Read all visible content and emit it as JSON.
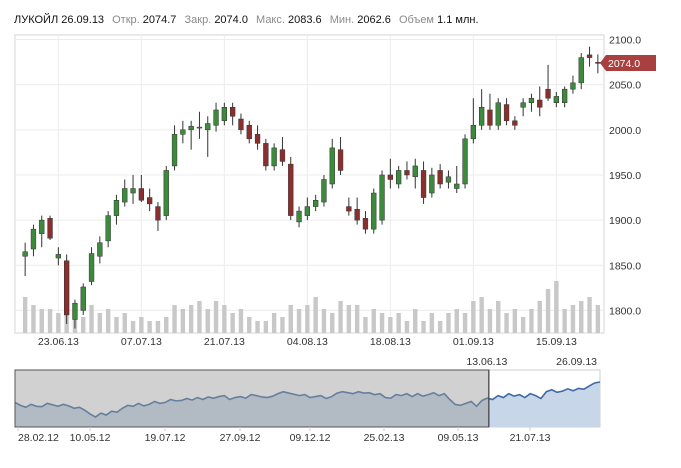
{
  "header": {
    "ticker": "ЛУКОЙЛ",
    "date": "26.09.13",
    "open_label": "Откр.",
    "open": "2074.7",
    "close_label": "Закр.",
    "close": "2074.0",
    "high_label": "Макс.",
    "high": "2083.6",
    "low_label": "Мин.",
    "low": "2062.6",
    "volume_label": "Объем",
    "volume": "1.1 млн."
  },
  "last_price_label": "2074.0",
  "colors": {
    "up": "#3c8a3c",
    "down": "#8b2e2e",
    "volume": "#c8c8c8",
    "price_tag": "#a94040",
    "navigator_line": "#3f6aa3",
    "navigator_fill": "#c7d6e8",
    "selection_shade": "#9a9a9a"
  },
  "chart_data": [
    {
      "type": "candlestick",
      "ylim": [
        1775,
        2105
      ],
      "y_ticks": [
        "2100.0",
        "2050.0",
        "2000.0",
        "1950.0",
        "1900.0",
        "1850.0",
        "1800.0"
      ],
      "x_tick_labels": [
        "23.06.13",
        "07.07.13",
        "21.07.13",
        "04.08.13",
        "18.08.13",
        "01.09.13",
        "15.09.13"
      ],
      "x_tick_positions": [
        4,
        14,
        24,
        34,
        44,
        54,
        64
      ],
      "candles": [
        {
          "o": 1860,
          "h": 1875,
          "l": 1838,
          "c": 1865
        },
        {
          "o": 1868,
          "h": 1895,
          "l": 1860,
          "c": 1890
        },
        {
          "o": 1885,
          "h": 1905,
          "l": 1870,
          "c": 1900
        },
        {
          "o": 1902,
          "h": 1905,
          "l": 1878,
          "c": 1880
        },
        {
          "o": 1858,
          "h": 1870,
          "l": 1850,
          "c": 1862
        },
        {
          "o": 1855,
          "h": 1862,
          "l": 1785,
          "c": 1795
        },
        {
          "o": 1790,
          "h": 1812,
          "l": 1780,
          "c": 1808
        },
        {
          "o": 1800,
          "h": 1830,
          "l": 1795,
          "c": 1826
        },
        {
          "o": 1832,
          "h": 1870,
          "l": 1828,
          "c": 1863
        },
        {
          "o": 1860,
          "h": 1882,
          "l": 1852,
          "c": 1875
        },
        {
          "o": 1877,
          "h": 1910,
          "l": 1870,
          "c": 1905
        },
        {
          "o": 1905,
          "h": 1928,
          "l": 1895,
          "c": 1922
        },
        {
          "o": 1920,
          "h": 1945,
          "l": 1915,
          "c": 1935
        },
        {
          "o": 1930,
          "h": 1950,
          "l": 1918,
          "c": 1935
        },
        {
          "o": 1935,
          "h": 1950,
          "l": 1920,
          "c": 1922
        },
        {
          "o": 1925,
          "h": 1935,
          "l": 1910,
          "c": 1918
        },
        {
          "o": 1915,
          "h": 1920,
          "l": 1888,
          "c": 1900
        },
        {
          "o": 1905,
          "h": 1960,
          "l": 1900,
          "c": 1955
        },
        {
          "o": 1960,
          "h": 2005,
          "l": 1955,
          "c": 1995
        },
        {
          "o": 1995,
          "h": 2010,
          "l": 1985,
          "c": 2000
        },
        {
          "o": 2000,
          "h": 2010,
          "l": 1978,
          "c": 2004
        },
        {
          "o": 2002,
          "h": 2020,
          "l": 1990,
          "c": 2003
        },
        {
          "o": 2000,
          "h": 2015,
          "l": 1970,
          "c": 2007
        },
        {
          "o": 2005,
          "h": 2030,
          "l": 1998,
          "c": 2022
        },
        {
          "o": 2010,
          "h": 2030,
          "l": 2005,
          "c": 2025
        },
        {
          "o": 2025,
          "h": 2030,
          "l": 2005,
          "c": 2015
        },
        {
          "o": 2012,
          "h": 2018,
          "l": 1995,
          "c": 2000
        },
        {
          "o": 2005,
          "h": 2010,
          "l": 1985,
          "c": 1990
        },
        {
          "o": 1995,
          "h": 2005,
          "l": 1978,
          "c": 1985
        },
        {
          "o": 1985,
          "h": 1990,
          "l": 1955,
          "c": 1960
        },
        {
          "o": 1960,
          "h": 1985,
          "l": 1955,
          "c": 1980
        },
        {
          "o": 1978,
          "h": 1992,
          "l": 1960,
          "c": 1965
        },
        {
          "o": 1962,
          "h": 1970,
          "l": 1900,
          "c": 1905
        },
        {
          "o": 1898,
          "h": 1915,
          "l": 1892,
          "c": 1910
        },
        {
          "o": 1905,
          "h": 1925,
          "l": 1900,
          "c": 1915
        },
        {
          "o": 1915,
          "h": 1928,
          "l": 1910,
          "c": 1922
        },
        {
          "o": 1920,
          "h": 1950,
          "l": 1915,
          "c": 1945
        },
        {
          "o": 1940,
          "h": 1990,
          "l": 1935,
          "c": 1980
        },
        {
          "o": 1978,
          "h": 1992,
          "l": 1950,
          "c": 1955
        },
        {
          "o": 1915,
          "h": 1925,
          "l": 1905,
          "c": 1910
        },
        {
          "o": 1912,
          "h": 1925,
          "l": 1895,
          "c": 1900
        },
        {
          "o": 1902,
          "h": 1910,
          "l": 1885,
          "c": 1890
        },
        {
          "o": 1890,
          "h": 1935,
          "l": 1885,
          "c": 1930
        },
        {
          "o": 1900,
          "h": 1955,
          "l": 1895,
          "c": 1950
        },
        {
          "o": 1950,
          "h": 1968,
          "l": 1935,
          "c": 1945
        },
        {
          "o": 1940,
          "h": 1960,
          "l": 1935,
          "c": 1955
        },
        {
          "o": 1955,
          "h": 1965,
          "l": 1945,
          "c": 1950
        },
        {
          "o": 1948,
          "h": 1968,
          "l": 1935,
          "c": 1960
        },
        {
          "o": 1955,
          "h": 1965,
          "l": 1918,
          "c": 1925
        },
        {
          "o": 1930,
          "h": 1958,
          "l": 1925,
          "c": 1950
        },
        {
          "o": 1955,
          "h": 1962,
          "l": 1935,
          "c": 1940
        },
        {
          "o": 1942,
          "h": 1955,
          "l": 1935,
          "c": 1948
        },
        {
          "o": 1935,
          "h": 1960,
          "l": 1930,
          "c": 1940
        },
        {
          "o": 1940,
          "h": 1995,
          "l": 1935,
          "c": 1990
        },
        {
          "o": 1990,
          "h": 2035,
          "l": 1985,
          "c": 2005
        },
        {
          "o": 2005,
          "h": 2045,
          "l": 2000,
          "c": 2025
        },
        {
          "o": 2022,
          "h": 2040,
          "l": 2000,
          "c": 2005
        },
        {
          "o": 2005,
          "h": 2035,
          "l": 2000,
          "c": 2030
        },
        {
          "o": 2028,
          "h": 2035,
          "l": 2005,
          "c": 2010
        },
        {
          "o": 2010,
          "h": 2015,
          "l": 2000,
          "c": 2005
        },
        {
          "o": 2025,
          "h": 2035,
          "l": 2015,
          "c": 2030
        },
        {
          "o": 2030,
          "h": 2040,
          "l": 2020,
          "c": 2035
        },
        {
          "o": 2033,
          "h": 2048,
          "l": 2015,
          "c": 2025
        },
        {
          "o": 2045,
          "h": 2072,
          "l": 2032,
          "c": 2035
        },
        {
          "o": 2030,
          "h": 2042,
          "l": 2025,
          "c": 2037
        },
        {
          "o": 2030,
          "h": 2048,
          "l": 2025,
          "c": 2045
        },
        {
          "o": 2045,
          "h": 2060,
          "l": 2040,
          "c": 2052
        },
        {
          "o": 2052,
          "h": 2085,
          "l": 2045,
          "c": 2080
        },
        {
          "o": 2083,
          "h": 2092,
          "l": 2070,
          "c": 2080
        },
        {
          "o": 2074.7,
          "h": 2083.6,
          "l": 2062.6,
          "c": 2074.0
        }
      ],
      "volume": [
        0.9,
        0.7,
        0.6,
        0.6,
        0.5,
        0.8,
        0.6,
        0.4,
        0.7,
        0.5,
        0.6,
        0.4,
        0.5,
        0.3,
        0.4,
        0.3,
        0.3,
        0.4,
        0.7,
        0.6,
        0.7,
        0.8,
        0.6,
        0.8,
        0.7,
        0.5,
        0.6,
        0.4,
        0.3,
        0.3,
        0.5,
        0.4,
        0.7,
        0.6,
        0.7,
        0.9,
        0.6,
        0.5,
        0.8,
        0.7,
        0.7,
        0.4,
        0.6,
        0.5,
        0.4,
        0.5,
        0.3,
        0.6,
        0.3,
        0.5,
        0.3,
        0.5,
        0.6,
        0.5,
        0.8,
        0.9,
        0.6,
        0.8,
        0.5,
        0.6,
        0.4,
        0.6,
        0.8,
        1.1,
        1.3,
        0.6,
        0.7,
        0.8,
        0.9,
        0.7
      ]
    },
    {
      "type": "area",
      "role": "navigator",
      "x_tick_labels": [
        "28.02.12",
        "10.05.12",
        "19.07.12",
        "27.09.12",
        "09.12.12",
        "25.02.13",
        "09.05.13",
        "21.07.13"
      ],
      "selection_labels": [
        "13.06.13",
        "26.09.13"
      ],
      "selection_range": [
        0,
        0.81
      ],
      "values": [
        1890,
        1875,
        1865,
        1880,
        1870,
        1868,
        1885,
        1878,
        1870,
        1880,
        1872,
        1860,
        1865,
        1850,
        1830,
        1815,
        1835,
        1825,
        1845,
        1840,
        1860,
        1875,
        1870,
        1885,
        1872,
        1880,
        1895,
        1885,
        1890,
        1905,
        1898,
        1900,
        1910,
        1902,
        1915,
        1905,
        1918,
        1912,
        1920,
        1925,
        1905,
        1915,
        1920,
        1912,
        1930,
        1925,
        1918,
        1915,
        1922,
        1935,
        1945,
        1938,
        1932,
        1925,
        1930,
        1915,
        1920,
        1925,
        1910,
        1920,
        1938,
        1945,
        1940,
        1935,
        1945,
        1938,
        1940,
        1930,
        1935,
        1915,
        1912,
        1930,
        1925,
        1935,
        1920,
        1935,
        1922,
        1930,
        1940,
        1925,
        1935,
        1905,
        1880,
        1875,
        1885,
        1895,
        1870,
        1900,
        1912,
        1905,
        1925,
        1915,
        1935,
        1922,
        1930,
        1915,
        1935,
        1925,
        1910,
        1945,
        1955,
        1942,
        1948,
        1960,
        1950,
        1962,
        1958,
        1975,
        1990,
        1995
      ]
    }
  ]
}
